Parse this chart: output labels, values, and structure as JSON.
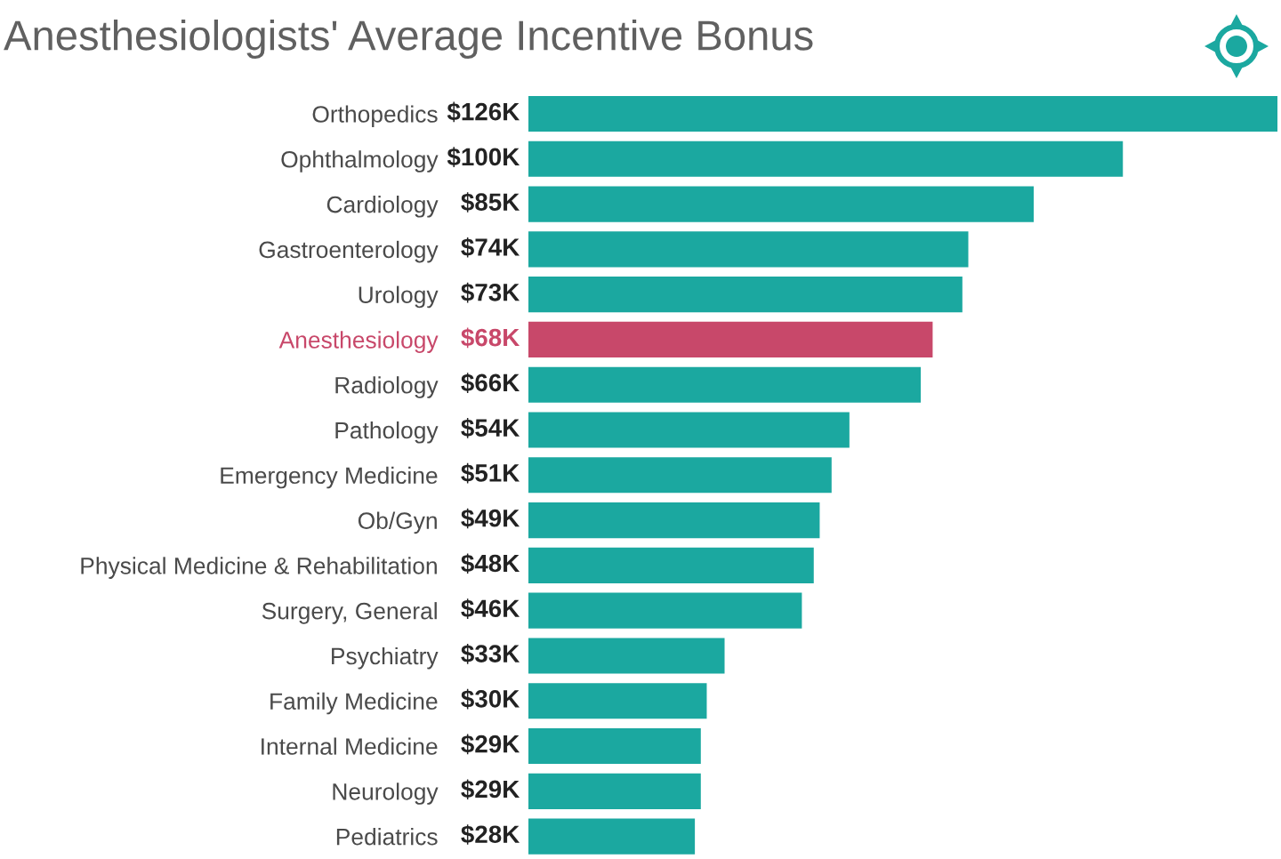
{
  "chart_data": {
    "type": "bar",
    "orientation": "horizontal",
    "title": "Anesthesiologists' Average Incentive Bonus",
    "categories": [
      "Orthopedics",
      "Ophthalmology",
      "Cardiology",
      "Gastroenterology",
      "Urology",
      "Anesthesiology",
      "Radiology",
      "Pathology",
      "Emergency Medicine",
      "Ob/Gyn",
      "Physical Medicine & Rehabilitation",
      "Surgery, General",
      "Psychiatry",
      "Family Medicine",
      "Internal Medicine",
      "Neurology",
      "Pediatrics"
    ],
    "values": [
      126,
      100,
      85,
      74,
      73,
      68,
      66,
      54,
      51,
      49,
      48,
      46,
      33,
      30,
      29,
      29,
      28
    ],
    "value_labels": [
      "$126K",
      "$100K",
      "$85K",
      "$74K",
      "$73K",
      "$68K",
      "$66K",
      "$54K",
      "$51K",
      "$49K",
      "$48K",
      "$46K",
      "$33K",
      "$30K",
      "$29K",
      "$29K",
      "$28K"
    ],
    "colors": [
      "#1ba8a0",
      "#1ba8a0",
      "#1ba8a0",
      "#1ba8a0",
      "#1ba8a0",
      "#c8486a",
      "#1ba8a0",
      "#1ba8a0",
      "#1ba8a0",
      "#1ba8a0",
      "#1ba8a0",
      "#1ba8a0",
      "#1ba8a0",
      "#1ba8a0",
      "#1ba8a0",
      "#1ba8a0",
      "#1ba8a0"
    ]
  }
}
